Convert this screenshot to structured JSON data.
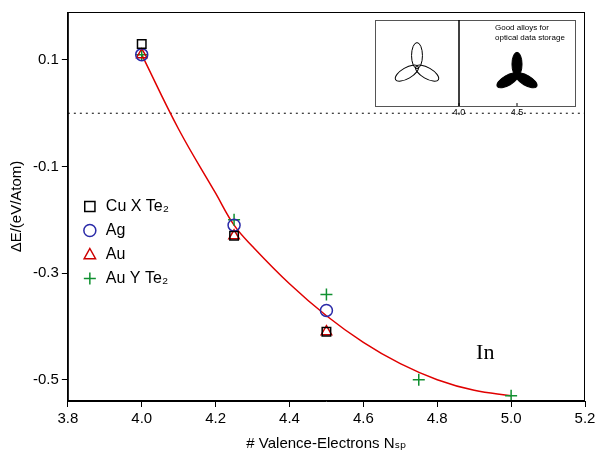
{
  "chart_data": {
    "type": "scatter",
    "x_label": "# Valence-Electrons Nₛₚ",
    "y_label": "ΔE/(eV/Atom)",
    "series": [
      {
        "name": "Cu X Te₂",
        "color": "#000000",
        "marker": "square",
        "x": [
          4.0,
          4.25,
          4.5
        ],
        "values": [
          0.13,
          -0.23,
          -0.41
        ]
      },
      {
        "name": "Ag",
        "color": "#2a2aa8",
        "marker": "circle",
        "x": [
          4.0,
          4.25,
          4.5
        ],
        "values": [
          0.11,
          -0.21,
          -0.37
        ]
      },
      {
        "name": "Au",
        "color": "#cc0000",
        "marker": "triangle",
        "x": [
          4.0,
          4.25,
          4.5
        ],
        "values": [
          0.11,
          -0.23,
          -0.41
        ]
      },
      {
        "name": "Au Y Te₂",
        "color": "#109030",
        "marker": "plus",
        "x": [
          4.0,
          4.25,
          4.5,
          4.75,
          5.0
        ],
        "values": [
          0.11,
          -0.2,
          -0.34,
          -0.5,
          -0.53
        ]
      }
    ],
    "fit": {
      "color": "#e00000",
      "line_style": "solid",
      "x": [
        4.0,
        4.1,
        4.2,
        4.25,
        4.3,
        4.4,
        4.5,
        4.6,
        4.7,
        4.8,
        4.9,
        5.0
      ],
      "values": [
        0.11,
        -0.03,
        -0.15,
        -0.21,
        -0.25,
        -0.32,
        -0.38,
        -0.43,
        -0.47,
        -0.5,
        -0.52,
        -0.53
      ]
    },
    "reference_line": {
      "value": 0,
      "line_style": "dotted"
    },
    "annotations": [
      {
        "text": "In",
        "x": 4.93,
        "y": -0.45
      }
    ],
    "inset": {
      "text": "Good alloys for optical data storage",
      "ticks": [
        {
          "value": 4.0,
          "label": "4.0"
        },
        {
          "value": 4.5,
          "label": "4.5"
        }
      ]
    },
    "xlim": [
      3.8,
      5.2
    ],
    "xticks": [
      3.8,
      {
        "value": 4.0,
        "label": "4.0"
      },
      4.2,
      4.4,
      4.6,
      4.8,
      {
        "value": 5.0,
        "label": "5.0"
      },
      5.2
    ],
    "ylim": [
      -0.54,
      0.19
    ],
    "yticks": [
      -0.5,
      -0.3,
      -0.1,
      0.1
    ],
    "grid": false,
    "legend": "center left"
  }
}
